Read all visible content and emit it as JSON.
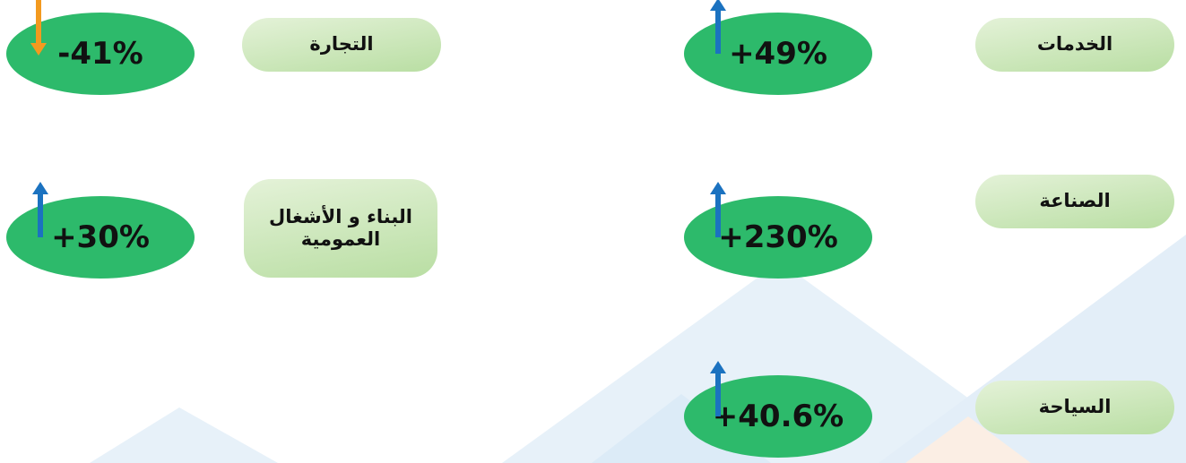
{
  "items": [
    {
      "label": "التجارة",
      "value": "-41%",
      "direction": "down"
    },
    {
      "label": "الخدمات",
      "value": "+49%",
      "direction": "up"
    },
    {
      "label": "البناء و الأشغال العمومية",
      "value": "+30%",
      "direction": "up"
    },
    {
      "label": "الصناعة",
      "value": "+230%",
      "direction": "up"
    },
    {
      "label": "السياحة",
      "value": "+40.6%",
      "direction": "up"
    }
  ]
}
